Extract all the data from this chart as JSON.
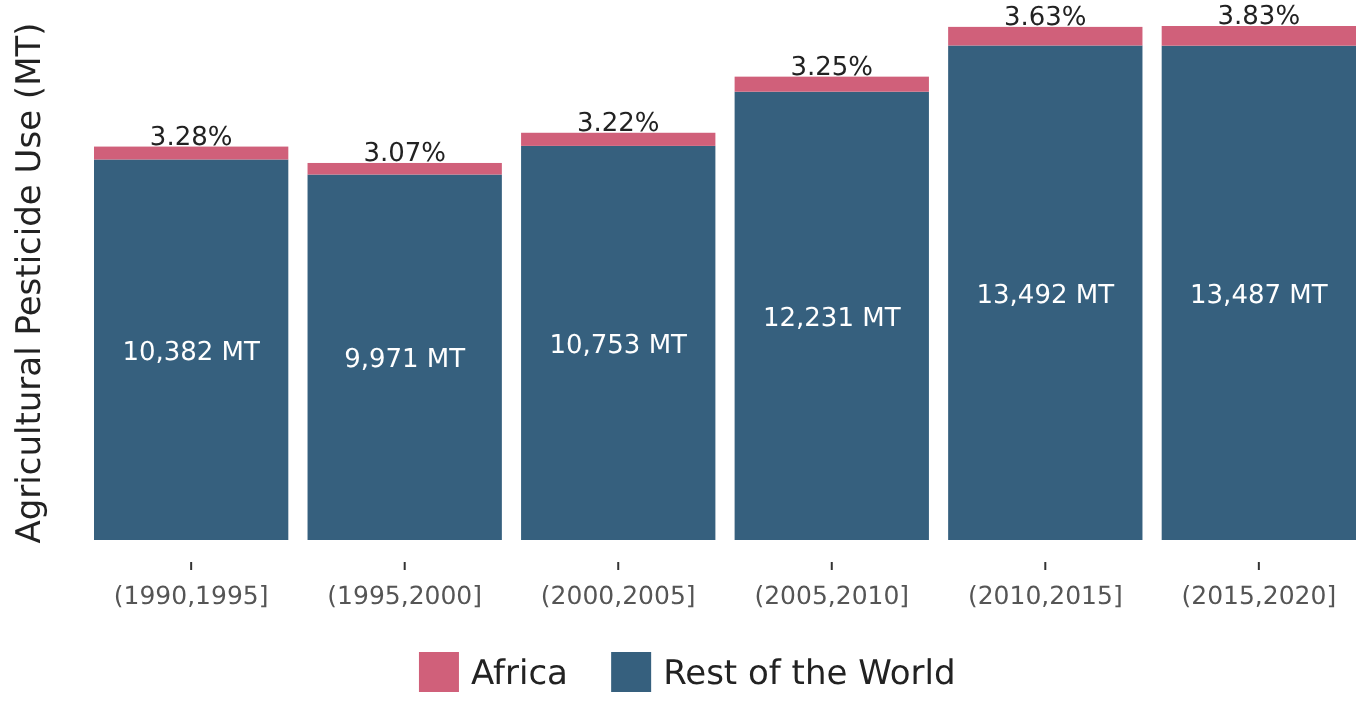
{
  "chart_data": {
    "type": "bar",
    "stacked": true,
    "ylabel": "Agricultural Pesticide Use (MT)",
    "categories": [
      "(1990,1995]",
      "(1995,2000]",
      "(2000,2005]",
      "(2005,2010]",
      "(2010,2015]",
      "(2015,2020]"
    ],
    "series": [
      {
        "name": "Rest of the World",
        "color": "#36607e",
        "values": [
          10382,
          9971,
          10753,
          12231,
          13492,
          13487
        ],
        "value_labels": [
          "10,382 MT",
          "9,971 MT",
          "10,753 MT",
          "12,231 MT",
          "13,492 MT",
          "13,487 MT"
        ]
      },
      {
        "name": "Africa",
        "color": "#d0607a",
        "values": [
          352,
          316,
          358,
          411,
          508,
          537
        ]
      }
    ],
    "annotations": [
      {
        "text": "3.28%",
        "x": "(1990,1995]",
        "y": 10734
      },
      {
        "text": "3.07%",
        "x": "(1995,2000]",
        "y": 10287
      },
      {
        "text": "3.22%",
        "x": "(2000,2005]",
        "y": 11111
      },
      {
        "text": "3.25%",
        "x": "(2005,2010]",
        "y": 12642
      },
      {
        "text": "3.63%",
        "x": "(2010,2015]",
        "y": 14000
      },
      {
        "text": "3.83%",
        "x": "(2015,2020]",
        "y": 14024
      }
    ],
    "tick_labels": "x",
    "legend": "bottom"
  }
}
